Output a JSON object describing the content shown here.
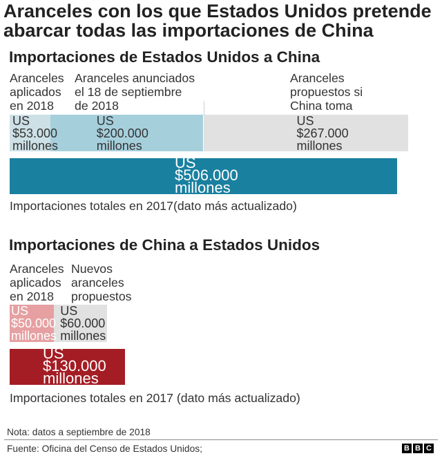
{
  "title": "Aranceles con los que Estados Unidos pretende abarcar todas las importaciones de China",
  "chart_data": [
    {
      "type": "bar",
      "orientation": "horizontal",
      "stacked": true,
      "title": "Importaciones de Estados Unidos a China",
      "segments": [
        {
          "label_lines": [
            "Aranceles",
            "aplicados",
            "en 2018"
          ],
          "value": 53000,
          "value_label": "US $53.000 millones",
          "color": "#cde0e6",
          "text_color": "#333333"
        },
        {
          "label_lines": [
            "Aranceles anunciados",
            "el 18 de septiembre",
            "de 2018"
          ],
          "value": 200000,
          "value_label": "US $200.000 millones",
          "color": "#a6cfdc",
          "text_color": "#333333"
        },
        {
          "label_lines": [
            "Aranceles",
            "propuestos si",
            "China toma"
          ],
          "value": 267000,
          "value_label": "US $267.000 millones",
          "color": "#e1e1e1",
          "text_color": "#333333"
        }
      ],
      "total": {
        "value": 506000,
        "value_label": "US $506.000 millones",
        "caption": "Importaciones totales en 2017(dato más actualizado)",
        "color": "#1a80a0",
        "text_color": "#ffffff"
      }
    },
    {
      "type": "bar",
      "orientation": "horizontal",
      "stacked": true,
      "title": "Importaciones de China a Estados Unidos",
      "segments": [
        {
          "label_lines": [
            "Aranceles",
            "aplicados",
            "en 2018"
          ],
          "value": 50000,
          "value_label": "US $50.000 millones",
          "color": "#e6a0a2",
          "text_color": "#ffffff"
        },
        {
          "label_lines": [
            "Nuevos",
            "aranceles",
            "propuestos"
          ],
          "value": 60000,
          "value_label": "US $60.000 millones",
          "color": "#e1e1e1",
          "text_color": "#333333"
        }
      ],
      "total": {
        "value": 130000,
        "value_label": "US $130.000 millones",
        "caption": "Importaciones totales en 2017 (dato más actualizado)",
        "color": "#a41d24",
        "text_color": "#ffffff"
      }
    }
  ],
  "note": "Nota: datos a septiembre de 2018",
  "footer": {
    "source": "Fuente: Oficina del Censo de Estados Unidos;",
    "logo_letters": [
      "B",
      "B",
      "C"
    ]
  }
}
